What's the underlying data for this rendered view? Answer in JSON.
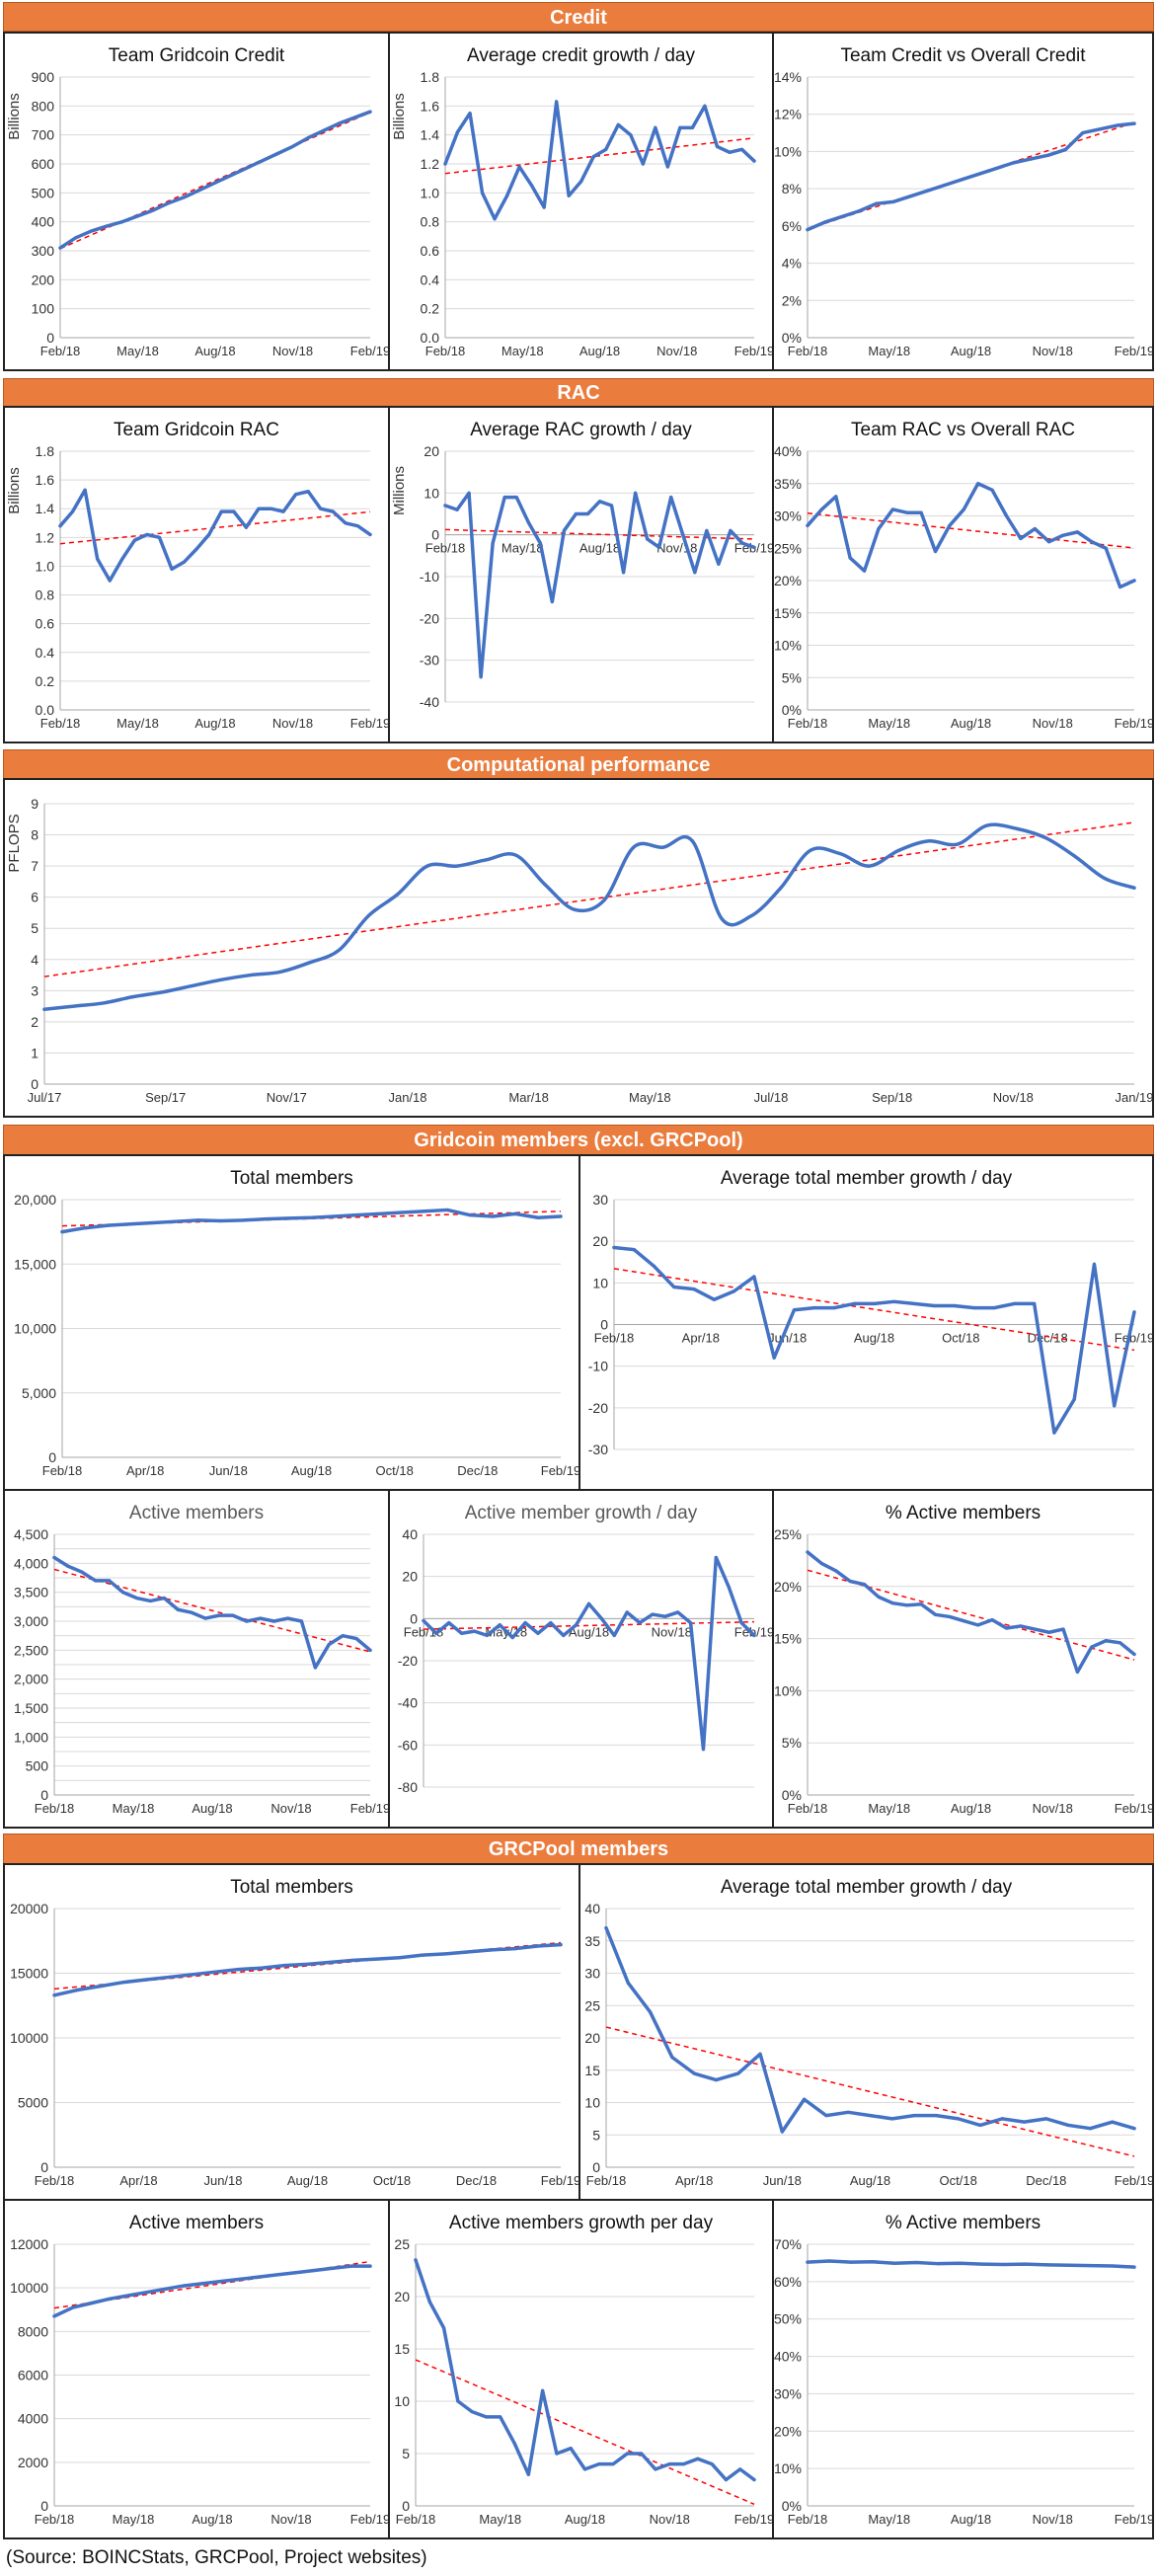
{
  "sections": [
    {
      "title": "Credit"
    },
    {
      "title": "RAC"
    },
    {
      "title": "Computational performance"
    },
    {
      "title": "Gridcoin members (excl. GRCPool)"
    },
    {
      "title": "GRCPool members"
    }
  ],
  "source_note": "(Source: BOINCStats, GRCPool, Project websites)",
  "colors": {
    "header_bg": "#ea7c3d",
    "line": "#4472c4",
    "trend": "#ff0000",
    "grid": "#d9d9d9"
  },
  "chart_data": [
    {
      "id": "c1",
      "type": "line",
      "title": "Team Gridcoin Credit",
      "ylabel": "Billions",
      "xlabel": "",
      "ylim": [
        0,
        900
      ],
      "yticks": [
        0,
        100,
        200,
        300,
        400,
        500,
        600,
        700,
        800,
        900
      ],
      "ytick_labels": [
        "0",
        "100",
        "200",
        "300",
        "400",
        "500",
        "600",
        "700",
        "800",
        "900"
      ],
      "x_tick_labels": [
        "Feb/18",
        "May/18",
        "Aug/18",
        "Nov/18",
        "Feb/19"
      ],
      "trend": true,
      "values": [
        310,
        345,
        368,
        385,
        400,
        420,
        440,
        465,
        485,
        510,
        535,
        560,
        585,
        610,
        635,
        660,
        690,
        715,
        740,
        760,
        780
      ]
    },
    {
      "id": "c2",
      "type": "line",
      "title": "Average credit growth / day",
      "ylabel": "Billions",
      "xlabel": "",
      "ylim": [
        0,
        1.8
      ],
      "yticks": [
        0,
        0.2,
        0.4,
        0.6,
        0.8,
        1.0,
        1.2,
        1.4,
        1.6,
        1.8
      ],
      "ytick_labels": [
        "0.0",
        "0.2",
        "0.4",
        "0.6",
        "0.8",
        "1.0",
        "1.2",
        "1.4",
        "1.6",
        "1.8"
      ],
      "x_tick_labels": [
        "Feb/18",
        "May/18",
        "Aug/18",
        "Nov/18",
        "Feb/19"
      ],
      "trend": true,
      "values": [
        1.2,
        1.42,
        1.55,
        1.0,
        0.82,
        0.98,
        1.18,
        1.05,
        0.9,
        1.63,
        0.98,
        1.08,
        1.25,
        1.3,
        1.47,
        1.4,
        1.2,
        1.45,
        1.18,
        1.45,
        1.45,
        1.6,
        1.32,
        1.28,
        1.3,
        1.22
      ]
    },
    {
      "id": "c3",
      "type": "line",
      "title": "Team Credit vs Overall Credit",
      "ylabel": "",
      "xlabel": "",
      "ylim": [
        0,
        14
      ],
      "yticks": [
        0,
        2,
        4,
        6,
        8,
        10,
        12,
        14
      ],
      "ytick_labels": [
        "0%",
        "2%",
        "4%",
        "6%",
        "8%",
        "10%",
        "12%",
        "14%"
      ],
      "x_tick_labels": [
        "Feb/18",
        "May/18",
        "Aug/18",
        "Nov/18",
        "Feb/19"
      ],
      "trend": true,
      "values": [
        5.8,
        6.2,
        6.5,
        6.8,
        7.2,
        7.3,
        7.6,
        7.9,
        8.2,
        8.5,
        8.8,
        9.1,
        9.4,
        9.6,
        9.8,
        10.1,
        11.0,
        11.2,
        11.4,
        11.5
      ]
    },
    {
      "id": "c4",
      "type": "line",
      "title": "Team Gridcoin RAC",
      "ylabel": "Billions",
      "xlabel": "",
      "ylim": [
        0,
        1.8
      ],
      "yticks": [
        0,
        0.2,
        0.4,
        0.6,
        0.8,
        1.0,
        1.2,
        1.4,
        1.6,
        1.8
      ],
      "ytick_labels": [
        "0.0",
        "0.2",
        "0.4",
        "0.6",
        "0.8",
        "1.0",
        "1.2",
        "1.4",
        "1.6",
        "1.8"
      ],
      "x_tick_labels": [
        "Feb/18",
        "May/18",
        "Aug/18",
        "Nov/18",
        "Feb/19"
      ],
      "trend": true,
      "values": [
        1.28,
        1.38,
        1.53,
        1.05,
        0.9,
        1.05,
        1.18,
        1.22,
        1.2,
        0.98,
        1.03,
        1.12,
        1.22,
        1.38,
        1.38,
        1.27,
        1.4,
        1.4,
        1.38,
        1.5,
        1.52,
        1.4,
        1.38,
        1.3,
        1.28,
        1.22
      ]
    },
    {
      "id": "c5",
      "type": "line",
      "title": "Average RAC growth / day",
      "ylabel": "Millions",
      "xlabel": "",
      "ylim": [
        -40,
        20
      ],
      "yticks": [
        -40,
        -30,
        -20,
        -10,
        0,
        10,
        20
      ],
      "ytick_labels": [
        "-40",
        "-30",
        "-20",
        "-10",
        "0",
        "10",
        "20"
      ],
      "x_tick_labels": [
        "Feb/18",
        "May/18",
        "Aug/18",
        "Nov/18",
        "Feb/19"
      ],
      "x_labels_at_zero": true,
      "trend": true,
      "values": [
        7,
        6,
        10,
        -34,
        -2,
        9,
        9,
        3,
        -2,
        -16,
        1,
        5,
        5,
        8,
        7,
        -9,
        10,
        -1,
        -3,
        9,
        0,
        -9,
        1,
        -7,
        1,
        -2,
        -3
      ]
    },
    {
      "id": "c6",
      "type": "line",
      "title": "Team RAC vs Overall RAC",
      "ylabel": "",
      "xlabel": "",
      "ylim": [
        0,
        40
      ],
      "yticks": [
        0,
        5,
        10,
        15,
        20,
        25,
        30,
        35,
        40
      ],
      "ytick_labels": [
        "0%",
        "5%",
        "10%",
        "15%",
        "20%",
        "25%",
        "30%",
        "35%",
        "40%"
      ],
      "x_tick_labels": [
        "Feb/18",
        "May/18",
        "Aug/18",
        "Nov/18",
        "Feb/19"
      ],
      "trend": true,
      "values": [
        28.5,
        31,
        33,
        23.5,
        21.5,
        28,
        31,
        30.5,
        30.5,
        24.5,
        28.5,
        31,
        35,
        34,
        30,
        26.5,
        28,
        26,
        27,
        27.5,
        26,
        25,
        19,
        20
      ]
    },
    {
      "id": "c7",
      "type": "line",
      "smooth": true,
      "title": "",
      "ylabel": "PFLOPS",
      "xlabel": "",
      "ylim": [
        0,
        9
      ],
      "yticks": [
        0,
        1,
        2,
        3,
        4,
        5,
        6,
        7,
        8,
        9
      ],
      "ytick_labels": [
        "0",
        "1",
        "2",
        "3",
        "4",
        "5",
        "6",
        "7",
        "8",
        "9"
      ],
      "x_tick_labels": [
        "Jul/17",
        "Sep/17",
        "Nov/17",
        "Jan/18",
        "Mar/18",
        "May/18",
        "Jul/18",
        "Sep/18",
        "Nov/18",
        "Jan/19"
      ],
      "trend": true,
      "values": [
        2.4,
        2.5,
        2.6,
        2.8,
        2.95,
        3.15,
        3.35,
        3.5,
        3.6,
        3.9,
        4.3,
        5.4,
        6.1,
        7.0,
        7.0,
        7.2,
        7.35,
        6.4,
        5.6,
        5.9,
        7.6,
        7.6,
        7.8,
        5.3,
        5.4,
        6.3,
        7.5,
        7.4,
        7.0,
        7.5,
        7.8,
        7.7,
        8.3,
        8.2,
        7.9,
        7.3,
        6.6,
        6.3
      ],
      "trend_start": 3.45,
      "trend_end": 8.4
    },
    {
      "id": "c8",
      "type": "line",
      "title": "Total members",
      "ylabel": "",
      "xlabel": "",
      "ylim": [
        0,
        20000
      ],
      "yticks": [
        0,
        5000,
        10000,
        15000,
        20000
      ],
      "ytick_labels": [
        "0",
        "5,000",
        "10,000",
        "15,000",
        "20,000"
      ],
      "x_tick_labels": [
        "Feb/18",
        "Apr/18",
        "Jun/18",
        "Aug/18",
        "Oct/18",
        "Dec/18",
        "Feb/19"
      ],
      "trend": true,
      "values": [
        17500,
        17800,
        18000,
        18100,
        18200,
        18300,
        18400,
        18350,
        18400,
        18500,
        18550,
        18600,
        18700,
        18800,
        18900,
        19000,
        19100,
        19200,
        18800,
        18700,
        18900,
        18600,
        18700
      ]
    },
    {
      "id": "c9",
      "type": "line",
      "title": "Average total member growth / day",
      "ylabel": "",
      "xlabel": "",
      "ylim": [
        -30,
        30
      ],
      "yticks": [
        -30,
        -20,
        -10,
        0,
        10,
        20,
        30
      ],
      "ytick_labels": [
        "-30",
        "-20",
        "-10",
        "0",
        "10",
        "20",
        "30"
      ],
      "x_tick_labels": [
        "Feb/18",
        "Apr/18",
        "Jun/18",
        "Aug/18",
        "Oct/18",
        "Dec/18",
        "Feb/19"
      ],
      "x_labels_at_zero": true,
      "trend": true,
      "values": [
        18.5,
        18,
        14,
        9,
        8.5,
        6,
        8,
        11.5,
        -8,
        3.5,
        4,
        4,
        5,
        5,
        5.5,
        5,
        4.5,
        4.5,
        4,
        4,
        5,
        5,
        -26,
        -18,
        14.5,
        -19.5,
        3
      ]
    },
    {
      "id": "c10",
      "type": "line",
      "title": "Active members",
      "title_color": "#595959",
      "ylabel": "",
      "xlabel": "",
      "ylim": [
        0,
        4500
      ],
      "yticks": [
        0,
        250,
        500,
        750,
        1000,
        1250,
        1500,
        1750,
        2000,
        2250,
        2500,
        2750,
        3000,
        3250,
        3500,
        3750,
        4000,
        4250,
        4500
      ],
      "ytick_labels": [
        "0",
        "",
        "500",
        "",
        "1,000",
        "",
        "1,500",
        "",
        "2,000",
        "",
        "2,500",
        "",
        "3,000",
        "",
        "3,500",
        "",
        "4,000",
        "",
        "4,500"
      ],
      "x_tick_labels": [
        "Feb/18",
        "May/18",
        "Aug/18",
        "Nov/18",
        "Feb/19"
      ],
      "trend": true,
      "values": [
        4100,
        3950,
        3850,
        3700,
        3700,
        3500,
        3400,
        3350,
        3400,
        3200,
        3150,
        3050,
        3100,
        3100,
        3000,
        3050,
        3000,
        3050,
        3000,
        2200,
        2600,
        2750,
        2700,
        2500
      ]
    },
    {
      "id": "c11",
      "type": "line",
      "title": "Active member growth / day",
      "title_color": "#595959",
      "ylabel": "",
      "xlabel": "",
      "ylim": [
        -80,
        40
      ],
      "yticks": [
        -80,
        -60,
        -40,
        -20,
        0,
        20,
        40
      ],
      "ytick_labels": [
        "-80",
        "-60",
        "-40",
        "-20",
        "0",
        "20",
        "40"
      ],
      "x_tick_labels": [
        "Feb/18",
        "May/18",
        "Aug/18",
        "Nov/18",
        "Feb/19"
      ],
      "x_labels_at_zero": true,
      "trend": true,
      "values": [
        -1,
        -7,
        -2,
        -7,
        -6,
        -8,
        -3,
        -9,
        -2,
        -7,
        -2,
        -8,
        -3,
        7,
        0,
        -8,
        3,
        -2,
        2,
        1,
        3,
        -2,
        -62,
        29,
        15,
        -2,
        -8
      ]
    },
    {
      "id": "c12",
      "type": "line",
      "title": "% Active members",
      "ylabel": "",
      "xlabel": "",
      "ylim": [
        0,
        25
      ],
      "yticks": [
        0,
        5,
        10,
        15,
        20,
        25
      ],
      "ytick_labels": [
        "0%",
        "5%",
        "10%",
        "15%",
        "20%",
        "25%"
      ],
      "x_tick_labels": [
        "Feb/18",
        "May/18",
        "Aug/18",
        "Nov/18",
        "Feb/19"
      ],
      "trend": true,
      "values": [
        23.3,
        22.2,
        21.5,
        20.5,
        20.2,
        19,
        18.4,
        18.2,
        18.3,
        17.3,
        17.1,
        16.7,
        16.3,
        16.8,
        16,
        16.2,
        15.9,
        15.6,
        15.9,
        11.8,
        14.2,
        14.8,
        14.6,
        13.5
      ]
    },
    {
      "id": "c13",
      "type": "line",
      "title": "Total members",
      "ylabel": "",
      "xlabel": "",
      "ylim": [
        0,
        20000
      ],
      "yticks": [
        0,
        5000,
        10000,
        15000,
        20000
      ],
      "ytick_labels": [
        "0",
        "5000",
        "10000",
        "15000",
        "20000"
      ],
      "x_tick_labels": [
        "Feb/18",
        "Apr/18",
        "Jun/18",
        "Aug/18",
        "Oct/18",
        "Dec/18",
        "Feb/19"
      ],
      "trend": true,
      "values": [
        13300,
        13700,
        14000,
        14300,
        14500,
        14700,
        14900,
        15100,
        15300,
        15400,
        15600,
        15700,
        15850,
        16000,
        16100,
        16200,
        16400,
        16500,
        16650,
        16800,
        16900,
        17100,
        17200
      ]
    },
    {
      "id": "c14",
      "type": "line",
      "title": "Average total member growth / day",
      "ylabel": "",
      "xlabel": "",
      "ylim": [
        0,
        40
      ],
      "yticks": [
        0,
        5,
        10,
        15,
        20,
        25,
        30,
        35,
        40
      ],
      "ytick_labels": [
        "0",
        "5",
        "10",
        "15",
        "20",
        "25",
        "30",
        "35",
        "40"
      ],
      "x_tick_labels": [
        "Feb/18",
        "Apr/18",
        "Jun/18",
        "Aug/18",
        "Oct/18",
        "Dec/18",
        "Feb/19"
      ],
      "trend": true,
      "values": [
        37,
        28.5,
        24,
        17,
        14.5,
        13.5,
        14.5,
        17.5,
        5.5,
        10.5,
        8,
        8.5,
        8,
        7.5,
        8,
        8,
        7.5,
        6.5,
        7.5,
        7,
        7.5,
        6.5,
        6,
        7,
        6
      ]
    },
    {
      "id": "c15",
      "type": "line",
      "title": "Active members",
      "ylabel": "",
      "xlabel": "",
      "ylim": [
        0,
        12000
      ],
      "yticks": [
        0,
        2000,
        4000,
        6000,
        8000,
        10000,
        12000
      ],
      "ytick_labels": [
        "0",
        "2000",
        "4000",
        "6000",
        "8000",
        "10000",
        "12000"
      ],
      "x_tick_labels": [
        "Feb/18",
        "May/18",
        "Aug/18",
        "Nov/18",
        "Feb/19"
      ],
      "trend": true,
      "values": [
        8700,
        9100,
        9300,
        9500,
        9650,
        9800,
        9950,
        10100,
        10200,
        10300,
        10400,
        10500,
        10600,
        10700,
        10800,
        10900,
        11000,
        11000
      ]
    },
    {
      "id": "c16",
      "type": "line",
      "title": "Active members growth per day",
      "ylabel": "",
      "xlabel": "",
      "ylim": [
        0,
        25
      ],
      "yticks": [
        0,
        5,
        10,
        15,
        20,
        25
      ],
      "ytick_labels": [
        "0",
        "5",
        "10",
        "15",
        "20",
        "25"
      ],
      "x_tick_labels": [
        "Feb/18",
        "May/18",
        "Aug/18",
        "Nov/18",
        "Feb/19"
      ],
      "trend": true,
      "values": [
        23.5,
        19.5,
        17,
        10,
        9,
        8.5,
        8.5,
        6,
        3,
        11,
        5,
        5.5,
        3.5,
        4,
        4,
        5,
        5,
        3.5,
        4,
        4,
        4.5,
        4,
        2.5,
        3.5,
        2.5
      ]
    },
    {
      "id": "c17",
      "type": "line",
      "title": "% Active members",
      "ylabel": "",
      "xlabel": "",
      "ylim": [
        0,
        70
      ],
      "yticks": [
        0,
        10,
        20,
        30,
        40,
        50,
        60,
        70
      ],
      "ytick_labels": [
        "0%",
        "10%",
        "20%",
        "30%",
        "40%",
        "50%",
        "60%",
        "70%"
      ],
      "x_tick_labels": [
        "Feb/18",
        "May/18",
        "Aug/18",
        "Nov/18",
        "Feb/19"
      ],
      "trend": true,
      "values": [
        65.2,
        65.5,
        65.2,
        65.3,
        64.9,
        65.1,
        64.8,
        64.9,
        64.7,
        64.6,
        64.7,
        64.5,
        64.4,
        64.3,
        64.2,
        63.9
      ]
    }
  ]
}
